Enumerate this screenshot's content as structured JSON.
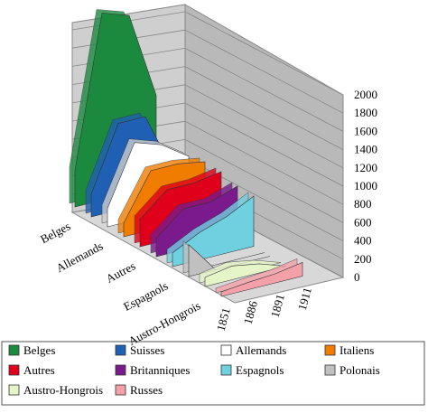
{
  "chart_data": {
    "type": "area3d",
    "categories": [
      "1851",
      "1886",
      "1891",
      "1911"
    ],
    "ylim": [
      0,
      2000
    ],
    "yticks": [
      0,
      200,
      400,
      600,
      800,
      1000,
      1200,
      1400,
      1600,
      1800,
      2000
    ],
    "grid": true,
    "series": [
      {
        "name": "Belges",
        "color": "#1b8a3f",
        "values": [
          400,
          2050,
          1950,
          1000
        ]
      },
      {
        "name": "Suisses",
        "color": "#1f5fb4",
        "values": [
          250,
          950,
          950,
          300
        ]
      },
      {
        "name": "Allemands",
        "color": "#ffffff",
        "values": [
          200,
          850,
          750,
          550
        ]
      },
      {
        "name": "Italiens",
        "color": "#f07d00",
        "values": [
          150,
          650,
          650,
          600
        ]
      },
      {
        "name": "Autres",
        "color": "#e0001b",
        "values": [
          300,
          550,
          550,
          600
        ]
      },
      {
        "name": "Britanniques",
        "color": "#7a1a8c",
        "values": [
          200,
          450,
          450,
          550
        ]
      },
      {
        "name": "Espagnols",
        "color": "#6fd0e0",
        "values": [
          150,
          300,
          400,
          550
        ]
      },
      {
        "name": "Polonais",
        "color": "#c0c0c0",
        "values": [
          350,
          0,
          0,
          0
        ]
      },
      {
        "name": "Austro-Hongrois",
        "color": "#e6f5c8",
        "values": [
          100,
          150,
          100,
          0
        ]
      },
      {
        "name": "Russes",
        "color": "#f4a0a8",
        "values": [
          50,
          80,
          100,
          150
        ]
      }
    ]
  }
}
